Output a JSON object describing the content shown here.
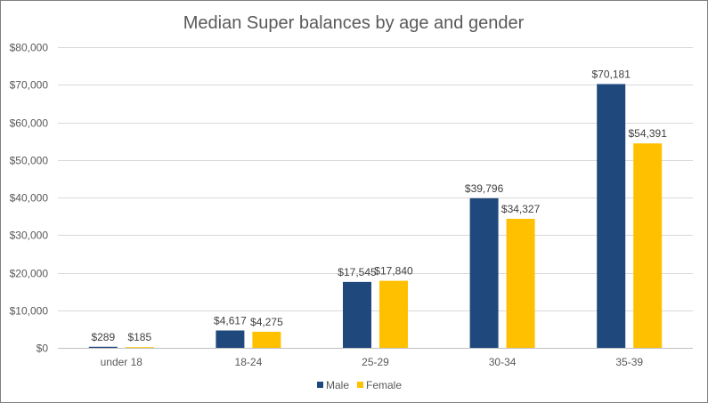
{
  "chart_data": {
    "type": "bar",
    "title": "Median Super balances by age and gender",
    "xlabel": "",
    "ylabel": "",
    "categories": [
      "under 18",
      "18-24",
      "25-29",
      "30-34",
      "35-39"
    ],
    "series": [
      {
        "name": "Male",
        "color": "#1f497d",
        "values": [
          289,
          4617,
          17545,
          39796,
          70181
        ],
        "labels": [
          "$289",
          "$4,617",
          "$17,545",
          "$39,796",
          "$70,181"
        ]
      },
      {
        "name": "Female",
        "color": "#ffc000",
        "values": [
          185,
          4275,
          17840,
          34327,
          54391
        ],
        "labels": [
          "$185",
          "$4,275",
          "$17,840",
          "$34,327",
          "$54,391"
        ]
      }
    ],
    "ylim": [
      0,
      80000
    ],
    "yticks": [
      0,
      10000,
      20000,
      30000,
      40000,
      50000,
      60000,
      70000,
      80000
    ],
    "ytick_labels": [
      "$0",
      "$10,000",
      "$20,000",
      "$30,000",
      "$40,000",
      "$50,000",
      "$60,000",
      "$70,000",
      "$80,000"
    ],
    "grid": true,
    "legend_position": "bottom"
  }
}
